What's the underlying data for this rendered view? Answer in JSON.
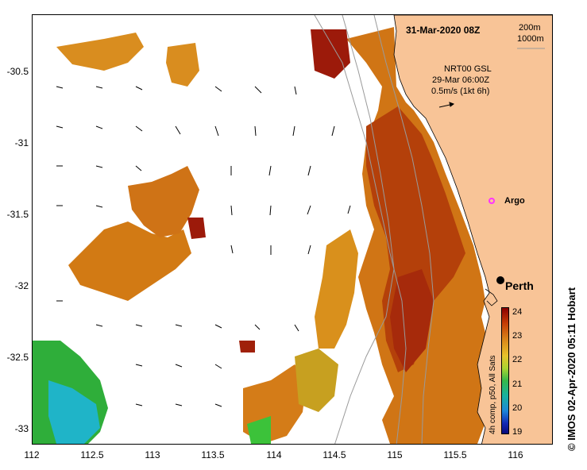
{
  "map": {
    "title": "31-Mar-2020 08Z",
    "depth_labels": [
      "200m",
      "1000m"
    ],
    "current_info": {
      "line1": "NRT00 GSL",
      "line2": "29-Mar 06:00Z",
      "line3": "0.5m/s (1kt 6h)"
    },
    "place_labels": {
      "argo": "Argo",
      "perth": "Perth"
    },
    "x_ticks": [
      "112",
      "112.5",
      "113",
      "113.5",
      "114",
      "114.5",
      "115",
      "115.5",
      "116"
    ],
    "y_ticks": [
      "-30.5",
      "-31",
      "-31.5",
      "-32",
      "-32.5",
      "-33"
    ],
    "colorbar": {
      "label": "4h comp, p50, All Sats",
      "ticks": [
        "24",
        "23",
        "22",
        "21",
        "20",
        "19"
      ]
    },
    "credit": "© IMOS 02-Apr-2020 05:11 Hobart",
    "colors": {
      "land": "#f8c497",
      "sst_warm": "#c84a05",
      "sst_hot": "#9c1a0a",
      "sst_mid": "#d7861a",
      "sst_cool": "#25b043",
      "argo": "#ff33ff"
    }
  }
}
